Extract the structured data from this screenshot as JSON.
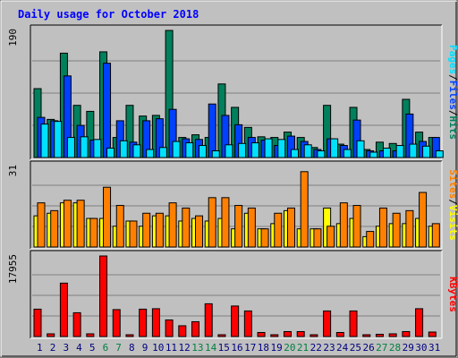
{
  "colors": {
    "background": "#c0c0c0",
    "panel": "#c0c0c0",
    "grid": "#808080",
    "title": "#0000ff",
    "weekday_label": "#000080",
    "weekend_label": "#008040",
    "hits": "#00805c",
    "files": "#0040ff",
    "pages": "#00e0ff",
    "visits": "#ffff00",
    "sites": "#ff8000",
    "kbytes": "#ff0000"
  },
  "chart_data": {
    "type": "bar",
    "title": "Daily usage for October 2018",
    "categories": [
      "1",
      "2",
      "3",
      "4",
      "5",
      "6",
      "7",
      "8",
      "9",
      "10",
      "11",
      "12",
      "13",
      "14",
      "15",
      "16",
      "17",
      "18",
      "19",
      "20",
      "21",
      "22",
      "23",
      "24",
      "25",
      "26",
      "27",
      "28",
      "29",
      "30",
      "31"
    ],
    "weekend_days": [
      "6",
      "7",
      "13",
      "14",
      "20",
      "21",
      "27",
      "28"
    ],
    "grid": true,
    "panels": [
      {
        "id": "hits-files-pages",
        "y_axis_max_label": "190",
        "ylim": [
          0,
          190
        ],
        "side_label": [
          {
            "text": "Pages",
            "color": "#00e0ff"
          },
          {
            "text": "/",
            "color": "#000000"
          },
          {
            "text": "Files",
            "color": "#0040ff"
          },
          {
            "text": "/",
            "color": "#000000"
          },
          {
            "text": "Hits",
            "color": "#00805c"
          }
        ],
        "series": [
          {
            "name": "Hits",
            "color": "#00805c",
            "values": [
              103,
              57,
              156,
              78,
              69,
              158,
              30,
              78,
              62,
              63,
              190,
              30,
              34,
              30,
              110,
              75,
              45,
              31,
              30,
              38,
              30,
              15,
              78,
              20,
              75,
              12,
              23,
              21,
              87,
              38,
              30
            ]
          },
          {
            "name": "Files",
            "color": "#0040ff",
            "values": [
              60,
              55,
              122,
              48,
              26,
              141,
              55,
              23,
              55,
              58,
              72,
              28,
              27,
              80,
              63,
              49,
              30,
              26,
              18,
              32,
              24,
              12,
              28,
              18,
              56,
              10,
              10,
              10,
              65,
              24,
              30
            ]
          },
          {
            "name": "Pages",
            "color": "#00e0ff",
            "values": [
              50,
              54,
              30,
              31,
              27,
              14,
              25,
              19,
              12,
              15,
              24,
              22,
              18,
              10,
              19,
              21,
              22,
              28,
              27,
              12,
              19,
              10,
              28,
              12,
              25,
              8,
              14,
              18,
              20,
              17,
              10
            ]
          }
        ]
      },
      {
        "id": "visits-sites",
        "y_axis_max_label": "31",
        "ylim": [
          0,
          31
        ],
        "side_label": [
          {
            "text": "Sites",
            "color": "#ff8000"
          },
          {
            "text": "/",
            "color": "#000000"
          },
          {
            "text": "Visits",
            "color": "#ffff00"
          }
        ],
        "series": [
          {
            "name": "Visits",
            "color": "#ffff00",
            "values": [
              12,
              13,
              17,
              17,
              11,
              11,
              8,
              10,
              8,
              12,
              12,
              10,
              11,
              10,
              11,
              7,
              13,
              7,
              9,
              14,
              7,
              7,
              15,
              9,
              11,
              4,
              8,
              9,
              9,
              11,
              8
            ]
          },
          {
            "name": "Sites",
            "color": "#ff8000",
            "values": [
              17,
              14,
              18,
              18,
              11,
              23,
              16,
              10,
              13,
              13,
              17,
              15,
              12,
              19,
              19,
              16,
              15,
              7,
              13,
              15,
              29,
              7,
              8,
              17,
              16,
              6,
              15,
              13,
              14,
              21,
              9
            ]
          }
        ]
      },
      {
        "id": "kbytes",
        "y_axis_max_label": "17955",
        "ylim": [
          0,
          17955
        ],
        "side_label": [
          {
            "text": "KBytes",
            "color": "#ff0000"
          }
        ],
        "series": [
          {
            "name": "KBytes",
            "color": "#ff0000",
            "values": [
              6100,
              600,
              11900,
              5300,
              600,
              17955,
              6000,
              200,
              6100,
              6200,
              3700,
              2400,
              3300,
              7300,
              300,
              6800,
              5700,
              900,
              300,
              1100,
              1100,
              200,
              5700,
              900,
              5700,
              300,
              500,
              600,
              1100,
              6200,
              1000
            ]
          }
        ]
      }
    ]
  }
}
